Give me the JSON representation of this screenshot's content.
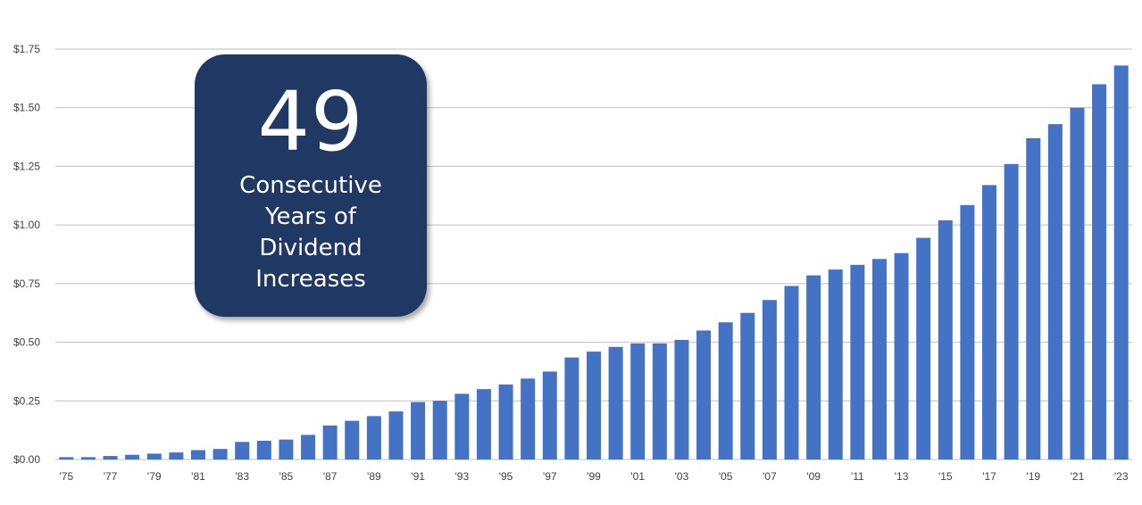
{
  "callout": {
    "number": "49",
    "lines": [
      "Consecutive",
      "Years of",
      "Dividend",
      "Increases"
    ]
  },
  "colors": {
    "bar": "#4472c4",
    "grid": "#bfbfbf",
    "callout_bg": "#1f3864",
    "text": "#404040"
  },
  "chart_data": {
    "type": "bar",
    "title": "",
    "xlabel": "",
    "ylabel": "",
    "ylim": [
      0,
      1.75
    ],
    "y_ticks": [
      "$0.00",
      "$0.25",
      "$0.50",
      "$0.75",
      "$1.00",
      "$1.25",
      "$1.50",
      "$1.75"
    ],
    "y_tick_values": [
      0,
      0.25,
      0.5,
      0.75,
      1.0,
      1.25,
      1.5,
      1.75
    ],
    "grid": true,
    "categories": [
      "'75",
      "'76",
      "'77",
      "'78",
      "'79",
      "'80",
      "'81",
      "'82",
      "'83",
      "'84",
      "'85",
      "'86",
      "'87",
      "'88",
      "'89",
      "'90",
      "'91",
      "'92",
      "'93",
      "'94",
      "'95",
      "'96",
      "'97",
      "'98",
      "'99",
      "'00",
      "'01",
      "'02",
      "'03",
      "'04",
      "'05",
      "'06",
      "'07",
      "'08",
      "'09",
      "'10",
      "'11",
      "'12",
      "'13",
      "'14",
      "'15",
      "'16",
      "'17",
      "'18",
      "'19",
      "'20",
      "'21",
      "'22",
      "'23"
    ],
    "x_tick_labels": [
      "'75",
      "",
      "'77",
      "",
      "'79",
      "",
      "'81",
      "",
      "'83",
      "",
      "'85",
      "",
      "'87",
      "",
      "'89",
      "",
      "'91",
      "",
      "'93",
      "",
      "'95",
      "",
      "'97",
      "",
      "'99",
      "",
      "'01",
      "",
      "'03",
      "",
      "'05",
      "",
      "'07",
      "",
      "'09",
      "",
      "'11",
      "",
      "'13",
      "",
      "'15",
      "",
      "'17",
      "",
      "'19",
      "",
      "'21",
      "",
      "'23"
    ],
    "values": [
      0.01,
      0.01,
      0.015,
      0.02,
      0.025,
      0.03,
      0.04,
      0.045,
      0.075,
      0.08,
      0.085,
      0.105,
      0.145,
      0.165,
      0.185,
      0.205,
      0.245,
      0.25,
      0.28,
      0.3,
      0.32,
      0.345,
      0.375,
      0.435,
      0.46,
      0.48,
      0.495,
      0.495,
      0.51,
      0.55,
      0.585,
      0.625,
      0.68,
      0.74,
      0.785,
      0.81,
      0.83,
      0.855,
      0.88,
      0.945,
      1.02,
      1.085,
      1.17,
      1.26,
      1.37,
      1.43,
      1.5,
      1.6,
      1.68
    ]
  }
}
